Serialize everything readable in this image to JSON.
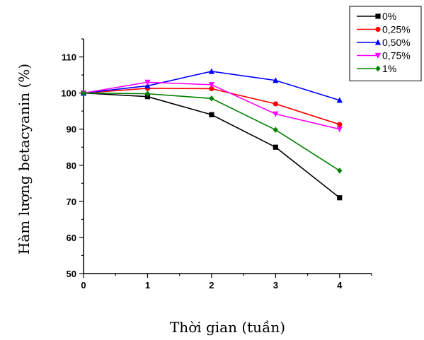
{
  "chart_data": {
    "type": "line",
    "title": "",
    "xlabel": "Thời gian (tuần)",
    "ylabel": "Hàm lượng betacyanin (%)",
    "x": [
      0,
      1,
      2,
      3,
      4
    ],
    "xlim": [
      0,
      4.5
    ],
    "ylim": [
      50,
      115
    ],
    "xticks": [
      "0",
      "1",
      "2",
      "3",
      "4"
    ],
    "yticks": [
      "50",
      "60",
      "70",
      "80",
      "90",
      "100",
      "110"
    ],
    "grid": false,
    "legend_position": "top-right",
    "series": [
      {
        "name": "0%",
        "color": "#000000",
        "marker": "square",
        "values": [
          100,
          99,
          94,
          85,
          71
        ]
      },
      {
        "name": "0,25%",
        "color": "#ff0000",
        "marker": "circle",
        "values": [
          100,
          101.3,
          101.2,
          97,
          91.3
        ]
      },
      {
        "name": "0,50%",
        "color": "#0000ff",
        "marker": "triangle-up",
        "values": [
          100,
          102,
          106,
          103.5,
          98
        ]
      },
      {
        "name": "0,75%",
        "color": "#ff00ff",
        "marker": "triangle-down",
        "values": [
          100,
          103,
          102.3,
          94.2,
          90
        ]
      },
      {
        "name": "1%",
        "color": "#008000",
        "marker": "diamond",
        "values": [
          100,
          99.8,
          98.5,
          89.8,
          78.5
        ]
      }
    ]
  }
}
